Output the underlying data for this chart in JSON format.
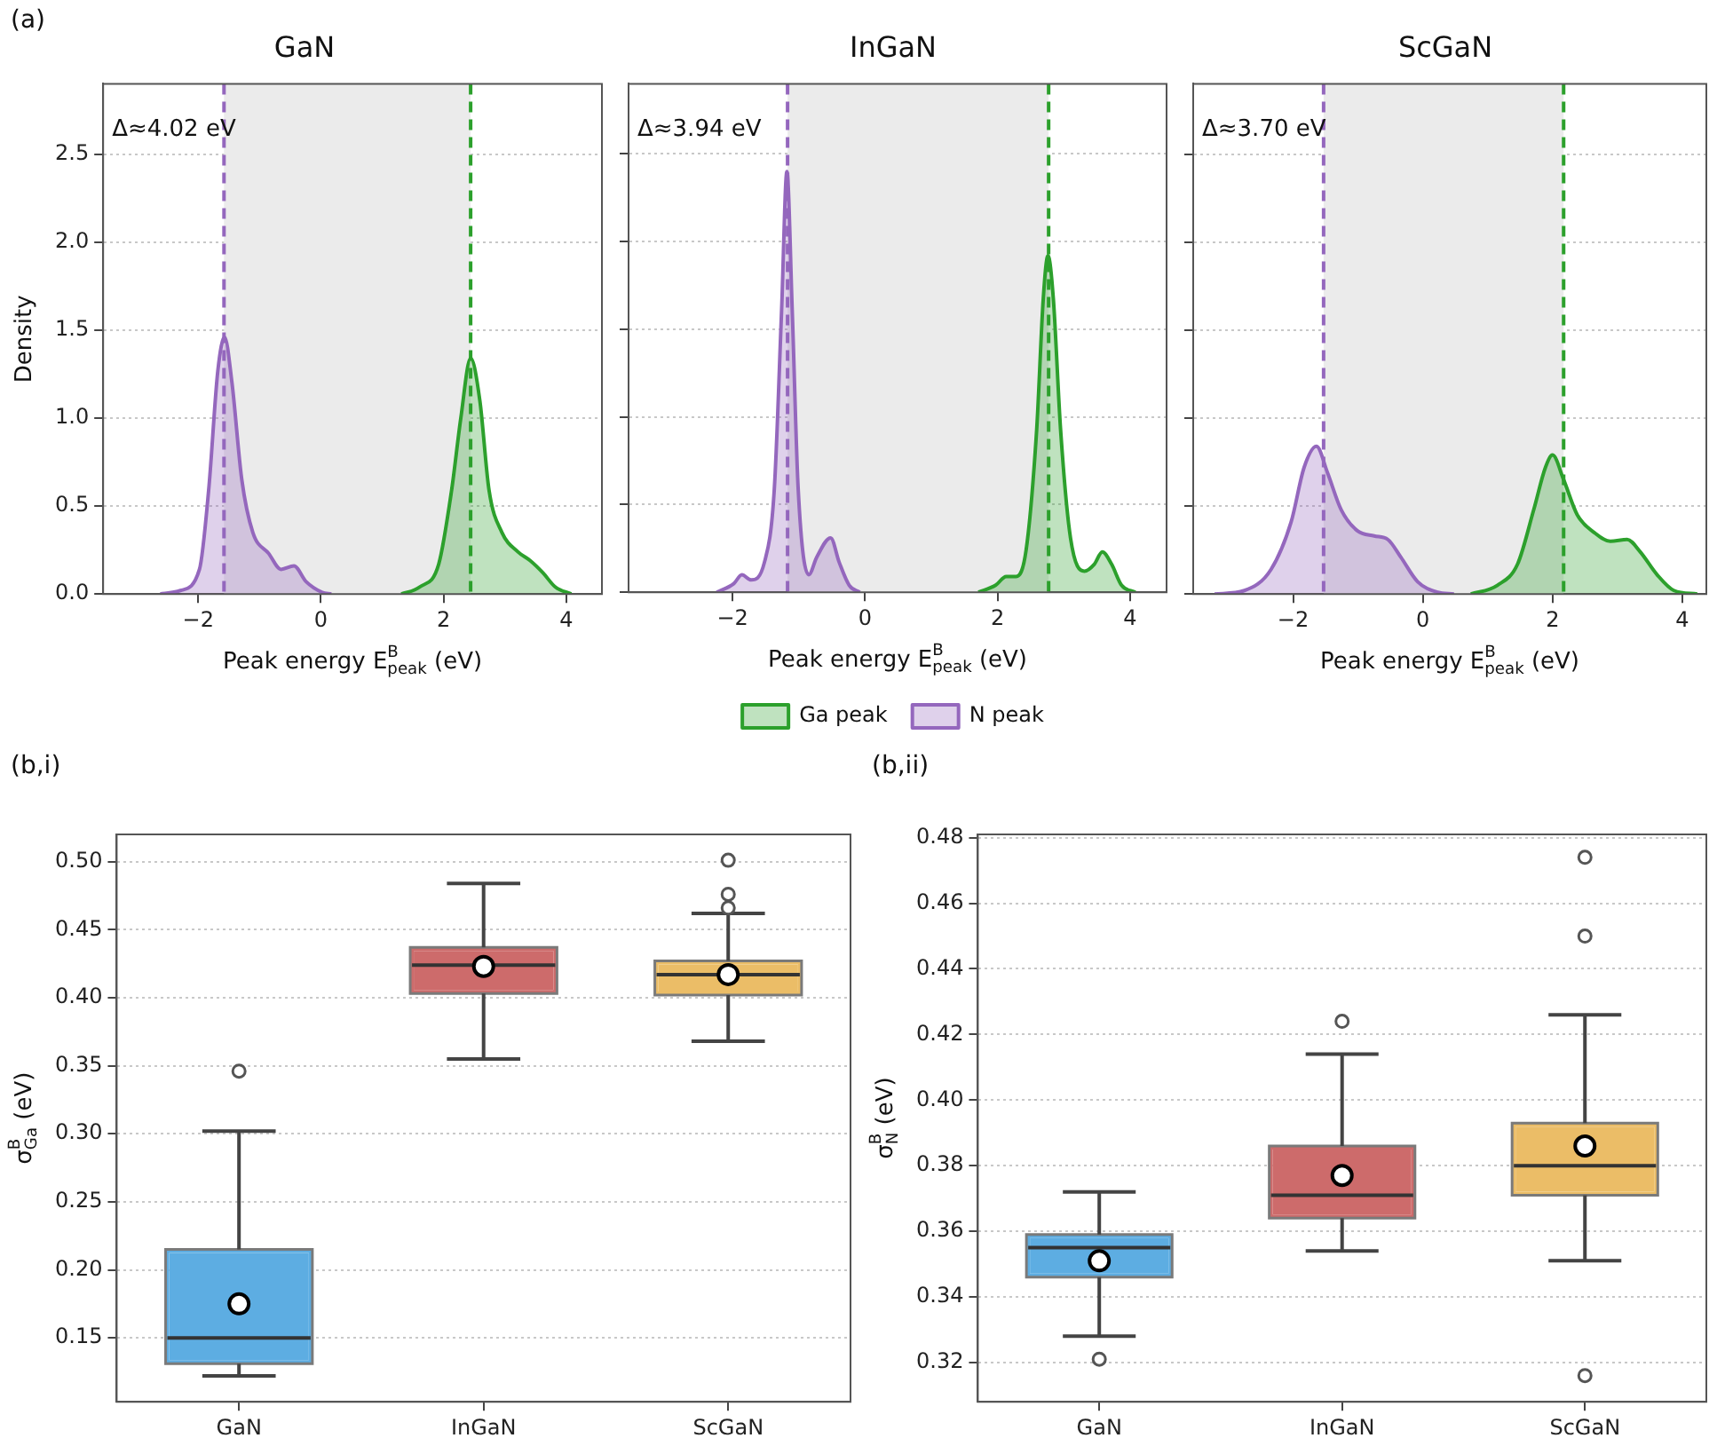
{
  "chart_data": [
    {
      "type": "area",
      "title": "GaN",
      "xlabel": "Peak energy E$^{B}$$_{peak}$ (eV)",
      "ylabel": "Density",
      "annotations": [
        "(a)",
        "Δ≈4.02 eV"
      ],
      "xlim": [
        -3.55,
        4.58
      ],
      "xticks": [
        -2,
        0,
        2,
        4
      ],
      "ylim": [
        0,
        2.9
      ],
      "yticks": [
        {
          "value": 0,
          "label": "0.0"
        },
        {
          "value": 0.5,
          "label": "0.5"
        },
        {
          "value": 1,
          "label": "1.0"
        },
        {
          "value": 1.5,
          "label": "1.5"
        },
        {
          "value": 2,
          "label": "2.0"
        },
        {
          "value": 2.5,
          "label": "2.5"
        }
      ],
      "grid": "y",
      "legend": false,
      "series": [
        {
          "color": "#2ca02c",
          "x": [
            1.31,
            1.61,
            1.92,
            2.13,
            2.28,
            2.44,
            2.59,
            2.74,
            2.95,
            3.21,
            3.41,
            3.62,
            3.82,
            4.08
          ],
          "values": [
            0,
            0.04,
            0.17,
            0.59,
            1.0,
            1.34,
            1.1,
            0.59,
            0.35,
            0.24,
            0.19,
            0.12,
            0.04,
            0
          ]
        },
        {
          "color": "#9467bd",
          "x": [
            -2.62,
            -2.29,
            -1.98,
            -1.83,
            -1.68,
            -1.57,
            -1.45,
            -1.29,
            -1.11,
            -0.85,
            -0.65,
            -0.44,
            -0.24,
            0.02,
            0.17
          ],
          "values": [
            0,
            0.02,
            0.14,
            0.59,
            1.27,
            1.46,
            1.2,
            0.65,
            0.35,
            0.23,
            0.14,
            0.16,
            0.07,
            0.01,
            0
          ]
        }
      ],
      "ref_lines": [
        {
          "axis": "x",
          "value": -1.58,
          "color": "#9467bd",
          "line_style": "dashed"
        },
        {
          "axis": "x",
          "value": 2.44,
          "color": "#2ca02c",
          "line_style": "dashed"
        }
      ],
      "bands": [
        {
          "axis": "x",
          "from": -1.58,
          "to": 2.44,
          "color": "#ebebeb"
        }
      ]
    },
    {
      "type": "area",
      "title": "InGaN",
      "xlabel": "Peak energy E$^{B}$$_{peak}$ (eV)",
      "annotations": [
        "Δ≈3.94 eV"
      ],
      "xlim": [
        -3.57,
        4.55
      ],
      "xticks": [
        -2,
        0,
        2,
        4
      ],
      "ylim": [
        0,
        2.9
      ],
      "yticks": [
        0,
        0.5,
        1,
        1.5,
        2,
        2.5
      ],
      "tick_labels": "x",
      "grid": "y",
      "legend": "bottom",
      "series": [
        {
          "name": "Ga peak",
          "color": "#2ca02c",
          "x": [
            1.71,
            1.97,
            2.13,
            2.28,
            2.43,
            2.59,
            2.69,
            2.76,
            2.84,
            2.95,
            3.1,
            3.31,
            3.46,
            3.58,
            3.72,
            3.87,
            4.08
          ],
          "values": [
            0,
            0.04,
            0.09,
            0.09,
            0.24,
            0.93,
            1.68,
            1.92,
            1.68,
            0.93,
            0.31,
            0.12,
            0.16,
            0.23,
            0.16,
            0.04,
            0
          ]
        },
        {
          "name": "N peak",
          "color": "#9467bd",
          "x": [
            -2.24,
            -1.98,
            -1.86,
            -1.72,
            -1.52,
            -1.37,
            -1.26,
            -1.18,
            -1.1,
            -1.01,
            -0.85,
            -0.73,
            -0.52,
            -0.39,
            -0.24,
            -0.08
          ],
          "values": [
            0,
            0.05,
            0.1,
            0.07,
            0.17,
            0.59,
            1.61,
            2.4,
            1.61,
            0.59,
            0.1,
            0.2,
            0.31,
            0.17,
            0.04,
            0
          ]
        }
      ],
      "ref_lines": [
        {
          "axis": "x",
          "value": -1.17,
          "color": "#9467bd",
          "line_style": "dashed"
        },
        {
          "axis": "x",
          "value": 2.77,
          "color": "#2ca02c",
          "line_style": "dashed"
        }
      ],
      "bands": [
        {
          "axis": "x",
          "from": -1.17,
          "to": 2.77,
          "color": "#ebebeb"
        }
      ]
    },
    {
      "type": "area",
      "title": "ScGaN",
      "xlabel": "Peak energy E$^{B}$$_{peak}$ (eV)",
      "annotations": [
        "Δ≈3.70 eV"
      ],
      "xlim": [
        -3.54,
        4.37
      ],
      "xticks": [
        -2,
        0,
        2,
        4
      ],
      "ylim": [
        0,
        2.9
      ],
      "yticks": [
        0,
        0.5,
        1,
        1.5,
        2,
        2.5
      ],
      "tick_labels": "x",
      "grid": "y",
      "legend": false,
      "series": [
        {
          "color": "#2ca02c",
          "x": [
            0.74,
            1.15,
            1.46,
            1.71,
            1.89,
            2.0,
            2.17,
            2.38,
            2.64,
            2.89,
            3.15,
            3.35,
            3.61,
            3.87,
            4.23
          ],
          "values": [
            0,
            0.05,
            0.17,
            0.48,
            0.72,
            0.79,
            0.65,
            0.45,
            0.35,
            0.3,
            0.31,
            0.24,
            0.11,
            0.02,
            0
          ]
        },
        {
          "color": "#9467bd",
          "x": [
            -3.21,
            -2.75,
            -2.34,
            -2.03,
            -1.83,
            -1.64,
            -1.47,
            -1.26,
            -1.01,
            -0.75,
            -0.54,
            -0.34,
            -0.08,
            0.23,
            0.48
          ],
          "values": [
            0,
            0.02,
            0.14,
            0.41,
            0.72,
            0.84,
            0.69,
            0.48,
            0.36,
            0.33,
            0.31,
            0.21,
            0.07,
            0.01,
            0
          ]
        }
      ],
      "ref_lines": [
        {
          "axis": "x",
          "value": -1.53,
          "color": "#9467bd",
          "line_style": "dashed"
        },
        {
          "axis": "x",
          "value": 2.17,
          "color": "#2ca02c",
          "line_style": "dashed"
        }
      ],
      "bands": [
        {
          "axis": "x",
          "from": -1.53,
          "to": 2.17,
          "color": "#ebebeb"
        }
      ]
    },
    {
      "type": "box",
      "ylabel": "σ$^{B}$$_{Ga}$ (eV)",
      "annotations": [
        "(b,i)"
      ],
      "categories": [
        "GaN",
        "InGaN",
        "ScGaN"
      ],
      "colors": [
        "#5dade2",
        "#cd6b6b",
        "#ebbd67"
      ],
      "ylim": [
        0.103,
        0.52
      ],
      "yticks": [
        {
          "value": 0.15,
          "label": "0.15"
        },
        {
          "value": 0.2,
          "label": "0.20"
        },
        {
          "value": 0.25,
          "label": "0.25"
        },
        {
          "value": 0.3,
          "label": "0.30"
        },
        {
          "value": 0.35,
          "label": "0.35"
        },
        {
          "value": 0.4,
          "label": "0.40"
        },
        {
          "value": 0.45,
          "label": "0.45"
        },
        {
          "value": 0.5,
          "label": "0.50"
        }
      ],
      "grid": "y",
      "legend": false,
      "boxes": [
        {
          "low": 0.122,
          "q1": 0.131,
          "median": 0.15,
          "q3": 0.215,
          "high": 0.302,
          "mean": 0.175,
          "outliers": [
            0.346
          ]
        },
        {
          "low": 0.355,
          "q1": 0.403,
          "median": 0.424,
          "q3": 0.437,
          "high": 0.484,
          "mean": 0.423
        },
        {
          "low": 0.368,
          "q1": 0.402,
          "median": 0.417,
          "q3": 0.427,
          "high": 0.462,
          "mean": 0.417,
          "outliers": [
            0.501,
            0.476,
            0.466
          ]
        }
      ]
    },
    {
      "type": "box",
      "ylabel": "σ$^{B}$$_{N}$ (eV)",
      "annotations": [
        "(b,ii)"
      ],
      "categories": [
        "GaN",
        "InGaN",
        "ScGaN"
      ],
      "colors": [
        "#5dade2",
        "#cd6b6b",
        "#ebbd67"
      ],
      "ylim": [
        0.308,
        0.481
      ],
      "yticks": [
        {
          "value": 0.32,
          "label": "0.32"
        },
        {
          "value": 0.34,
          "label": "0.34"
        },
        {
          "value": 0.36,
          "label": "0.36"
        },
        {
          "value": 0.38,
          "label": "0.38"
        },
        {
          "value": 0.4,
          "label": "0.40"
        },
        {
          "value": 0.42,
          "label": "0.42"
        },
        {
          "value": 0.44,
          "label": "0.44"
        },
        {
          "value": 0.46,
          "label": "0.46"
        },
        {
          "value": 0.48,
          "label": "0.48"
        }
      ],
      "grid": "y",
      "legend": false,
      "boxes": [
        {
          "low": 0.328,
          "q1": 0.346,
          "median": 0.355,
          "q3": 0.359,
          "high": 0.372,
          "mean": 0.351,
          "outliers": [
            0.321
          ]
        },
        {
          "low": 0.354,
          "q1": 0.364,
          "median": 0.371,
          "q3": 0.386,
          "high": 0.414,
          "mean": 0.377,
          "outliers": [
            0.424
          ]
        },
        {
          "low": 0.351,
          "q1": 0.371,
          "median": 0.38,
          "q3": 0.393,
          "high": 0.426,
          "mean": 0.386,
          "outliers": [
            0.474,
            0.45,
            0.316
          ]
        }
      ]
    }
  ]
}
